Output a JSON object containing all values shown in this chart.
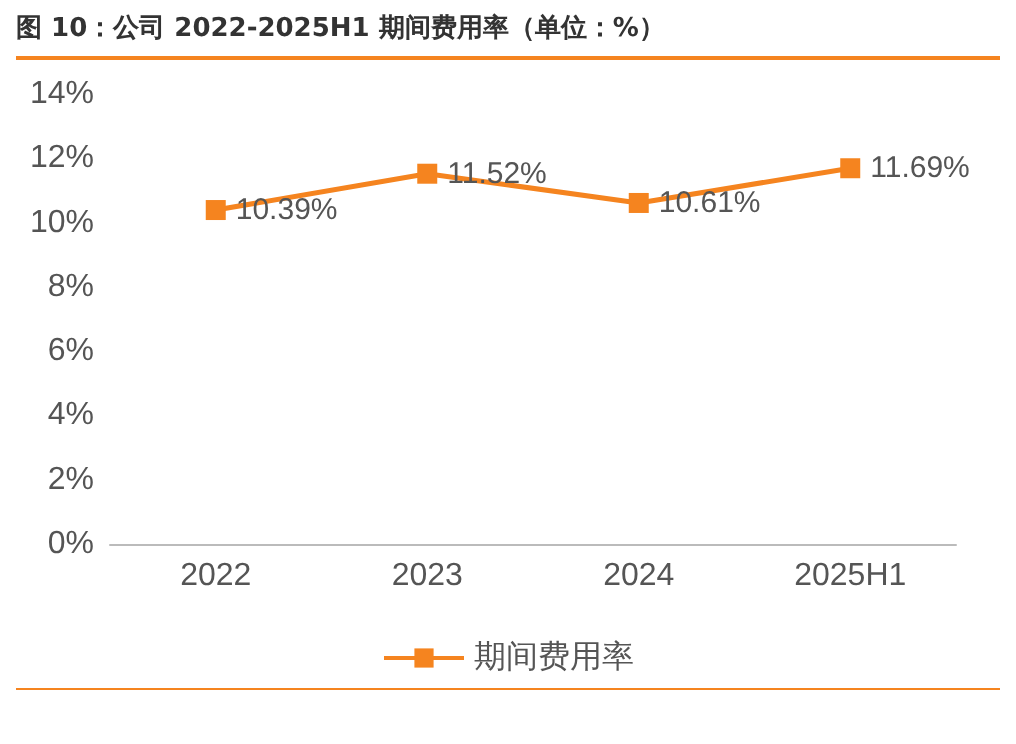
{
  "chart_data": {
    "type": "line",
    "title": "图 10：公司 2022-2025H1 期间费用率（单位：%）",
    "categories": [
      "2022",
      "2023",
      "2024",
      "2025H1"
    ],
    "series": [
      {
        "name": "期间费用率",
        "color": "#f5841f",
        "values": [
          10.39,
          11.52,
          10.61,
          11.69
        ],
        "value_labels": [
          "10.39%",
          "11.52%",
          "10.61%",
          "11.69%"
        ]
      }
    ],
    "ylim": [
      0,
      14
    ],
    "yticks": [
      {
        "value": 0,
        "label": "0%"
      },
      {
        "value": 2,
        "label": "2%"
      },
      {
        "value": 4,
        "label": "4%"
      },
      {
        "value": 6,
        "label": "6%"
      },
      {
        "value": 8,
        "label": "8%"
      },
      {
        "value": 10,
        "label": "10%"
      },
      {
        "value": 12,
        "label": "12%"
      },
      {
        "value": 14,
        "label": "14%"
      }
    ],
    "grid": false,
    "legend": "bottom",
    "marker": "square",
    "line_style": "solid"
  }
}
